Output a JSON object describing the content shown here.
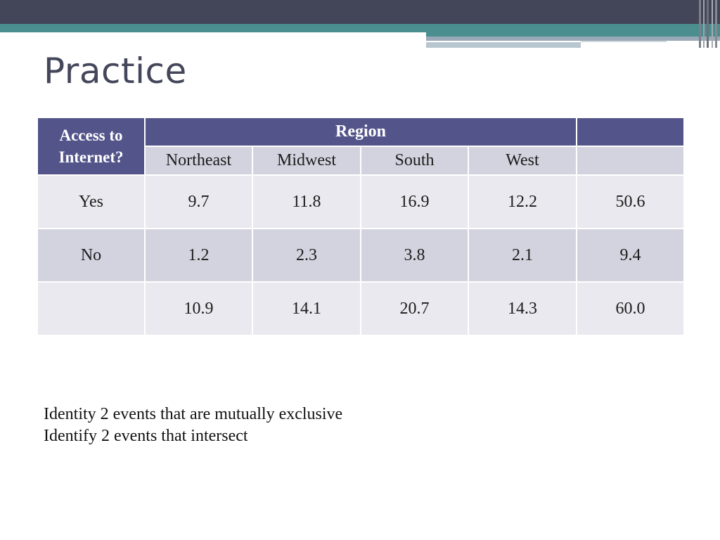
{
  "slide": {
    "title": "Practice"
  },
  "table": {
    "row_header_label": "Access to Internet?",
    "group_header": "Region",
    "columns": [
      "Northeast",
      "Midwest",
      "South",
      "West",
      ""
    ],
    "rows": [
      {
        "label": "Yes",
        "values": [
          "9.7",
          "11.8",
          "16.9",
          "12.2",
          "50.6"
        ]
      },
      {
        "label": "No",
        "values": [
          "1.2",
          "2.3",
          "3.8",
          "2.1",
          "9.4"
        ]
      },
      {
        "label": "",
        "values": [
          "10.9",
          "14.1",
          "20.7",
          "14.3",
          "60.0"
        ]
      }
    ]
  },
  "questions": [
    "Identity 2 events that are mutually exclusive",
    "Identify 2 events that intersect"
  ],
  "colors": {
    "header_bg": "#53548a",
    "subheader_bg": "#d2d3de",
    "row_light": "#e9e9ef",
    "row_dark": "#d2d3de",
    "title": "#44465a",
    "top_bar": "#434558",
    "accent_teal": "#4b8e8f"
  }
}
